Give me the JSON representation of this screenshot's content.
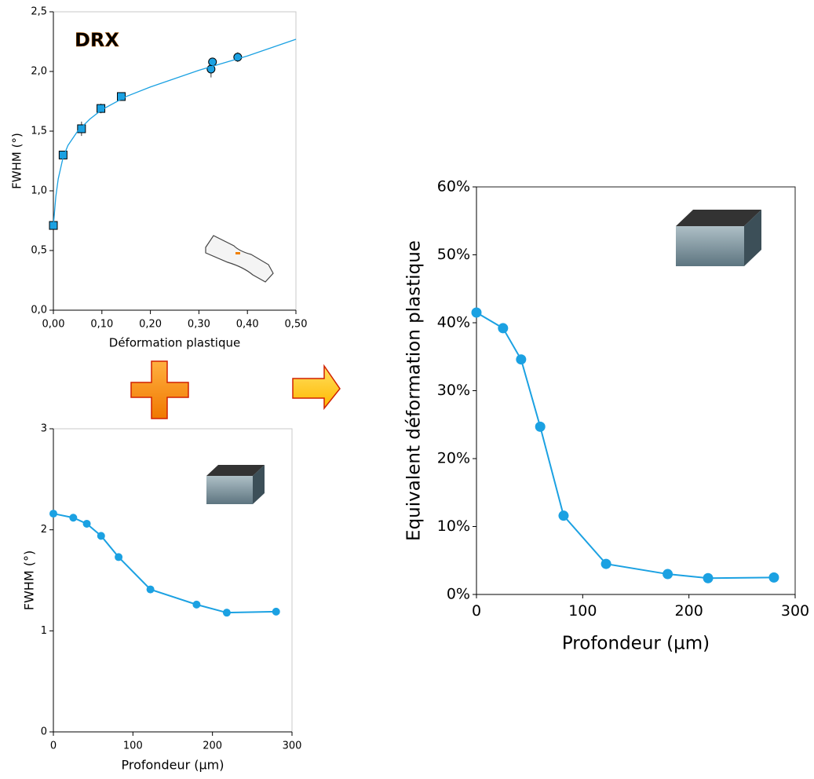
{
  "chart_data": [
    {
      "type": "scatter",
      "annotation": "DRX",
      "xlabel": "Déformation plastique",
      "ylabel": "FWHM (°)",
      "series": [
        {
          "color": "#1ba1e2",
          "marker": "square",
          "x": [
            0,
            0.02,
            0.058,
            0.098,
            0.14
          ],
          "values": [
            0.71,
            1.3,
            1.52,
            1.69,
            1.79
          ],
          "errors": [
            0.02,
            0.02,
            0.06,
            0.04,
            0.03
          ]
        },
        {
          "color": "#1ba1e2",
          "marker": "circle",
          "x": [
            0.325,
            0.328,
            0.38
          ],
          "values": [
            2.02,
            2.08,
            2.12
          ],
          "errors": [
            0.07,
            0.03,
            0.04
          ]
        },
        {
          "color": "#1ba1e2",
          "marker": "none",
          "line": true,
          "x": [
            0,
            0.005,
            0.01,
            0.02,
            0.03,
            0.05,
            0.075,
            0.1,
            0.15,
            0.2,
            0.25,
            0.3,
            0.35,
            0.4,
            0.45,
            0.5
          ],
          "values": [
            0.71,
            0.95,
            1.1,
            1.28,
            1.38,
            1.5,
            1.6,
            1.68,
            1.79,
            1.87,
            1.94,
            2.01,
            2.07,
            2.13,
            2.2,
            2.27
          ]
        }
      ],
      "xlim": [
        0,
        0.5
      ],
      "ylim": [
        0,
        2.5
      ],
      "xticks": [
        {
          "value": 0,
          "label": "0,00"
        },
        {
          "value": 0.1,
          "label": "0,10"
        },
        {
          "value": 0.2,
          "label": "0,20"
        },
        {
          "value": 0.3,
          "label": "0,30"
        },
        {
          "value": 0.4,
          "label": "0,40"
        },
        {
          "value": 0.5,
          "label": "0,50"
        }
      ],
      "yticks": [
        {
          "value": 0,
          "label": "0,0"
        },
        {
          "value": 0.5,
          "label": "0,5"
        },
        {
          "value": 1,
          "label": "1,0"
        },
        {
          "value": 1.5,
          "label": "1,5"
        },
        {
          "value": 2,
          "label": "2,0"
        },
        {
          "value": 2.5,
          "label": "2,5"
        }
      ]
    },
    {
      "type": "line",
      "xlabel": "Profondeur (µm)",
      "ylabel": "FWHM (°)",
      "series": [
        {
          "color": "#1ba1e2",
          "marker": "circle",
          "line": true,
          "x": [
            0,
            25,
            42,
            60,
            82,
            122,
            180,
            218,
            280
          ],
          "values": [
            2.16,
            2.12,
            2.06,
            1.94,
            1.73,
            1.41,
            1.26,
            1.18,
            1.19
          ]
        }
      ],
      "xlim": [
        0,
        300
      ],
      "ylim": [
        0,
        3
      ],
      "xticks": [
        0,
        100,
        200,
        300
      ],
      "yticks": [
        0,
        1,
        2,
        3
      ]
    },
    {
      "type": "line",
      "xlabel": "Profondeur (µm)",
      "ylabel": "Equivalent déformation plastique",
      "series": [
        {
          "color": "#1ba1e2",
          "marker": "circle",
          "line": true,
          "x": [
            0,
            25,
            42,
            60,
            82,
            122,
            180,
            218,
            280
          ],
          "values": [
            41.5,
            39.2,
            34.6,
            24.7,
            11.6,
            4.5,
            3.0,
            2.4,
            2.5
          ]
        }
      ],
      "xlim": [
        0,
        300
      ],
      "ylim": [
        0,
        60
      ],
      "xticks": [
        0,
        100,
        200,
        300
      ],
      "yticks": [
        {
          "value": 0,
          "label": "0%"
        },
        {
          "value": 10,
          "label": "10%"
        },
        {
          "value": 20,
          "label": "20%"
        },
        {
          "value": 30,
          "label": "30%"
        },
        {
          "value": 40,
          "label": "40%"
        },
        {
          "value": 50,
          "label": "50%"
        },
        {
          "value": 60,
          "label": "60%"
        }
      ]
    }
  ]
}
